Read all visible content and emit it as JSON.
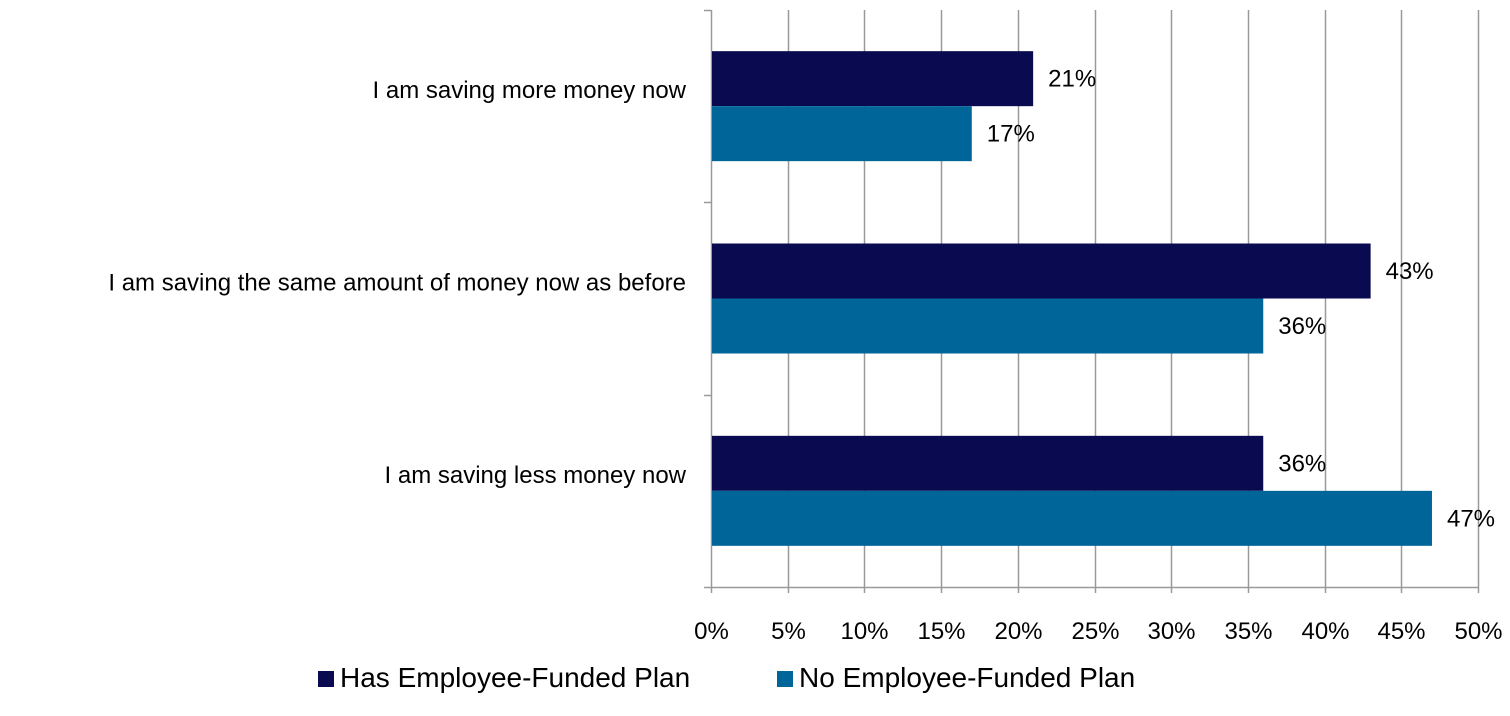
{
  "chart_data": {
    "type": "bar",
    "orientation": "horizontal",
    "categories": [
      "I am saving more money now",
      "I am saving the same amount of money now as before",
      "I am saving less money now"
    ],
    "series": [
      {
        "name": "Has Employee-Funded Plan",
        "values": [
          21,
          43,
          36
        ],
        "labels": [
          "21%",
          "43%",
          "36%"
        ],
        "color": "#0a0a50"
      },
      {
        "name": "No Employee-Funded Plan",
        "values": [
          17,
          36,
          47
        ],
        "labels": [
          "17%",
          "36%",
          "47%"
        ],
        "color": "#006699"
      }
    ],
    "xlim": [
      0,
      50
    ],
    "x_ticks": [
      "0%",
      "5%",
      "10%",
      "15%",
      "20%",
      "25%",
      "30%",
      "35%",
      "40%",
      "45%",
      "50%"
    ],
    "grid": "vertical",
    "legend_position": "bottom",
    "title": "",
    "xlabel": "",
    "ylabel": ""
  }
}
